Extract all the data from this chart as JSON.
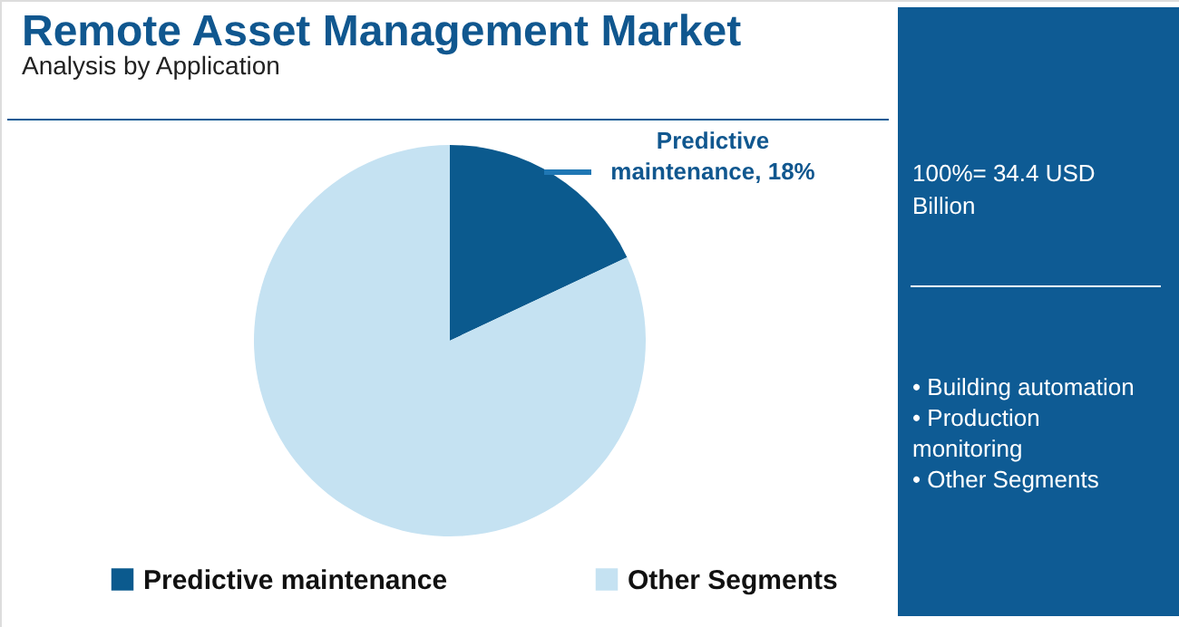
{
  "chart_data": {
    "type": "pie",
    "title": "Remote Asset Management Market",
    "subtitle": "Analysis by Application",
    "categories": [
      "Predictive maintenance",
      "Other Segments"
    ],
    "values": [
      18,
      82
    ],
    "colors": [
      "#0b5a8e",
      "#c5e2f2"
    ],
    "value_labels": [
      "Predictive maintenance, 18%",
      null
    ],
    "legend": "bottom",
    "annotations": [
      "100%= 34.4 USD Billion",
      "• Building automation",
      "• Production monitoring",
      "• Other Segments"
    ]
  }
}
